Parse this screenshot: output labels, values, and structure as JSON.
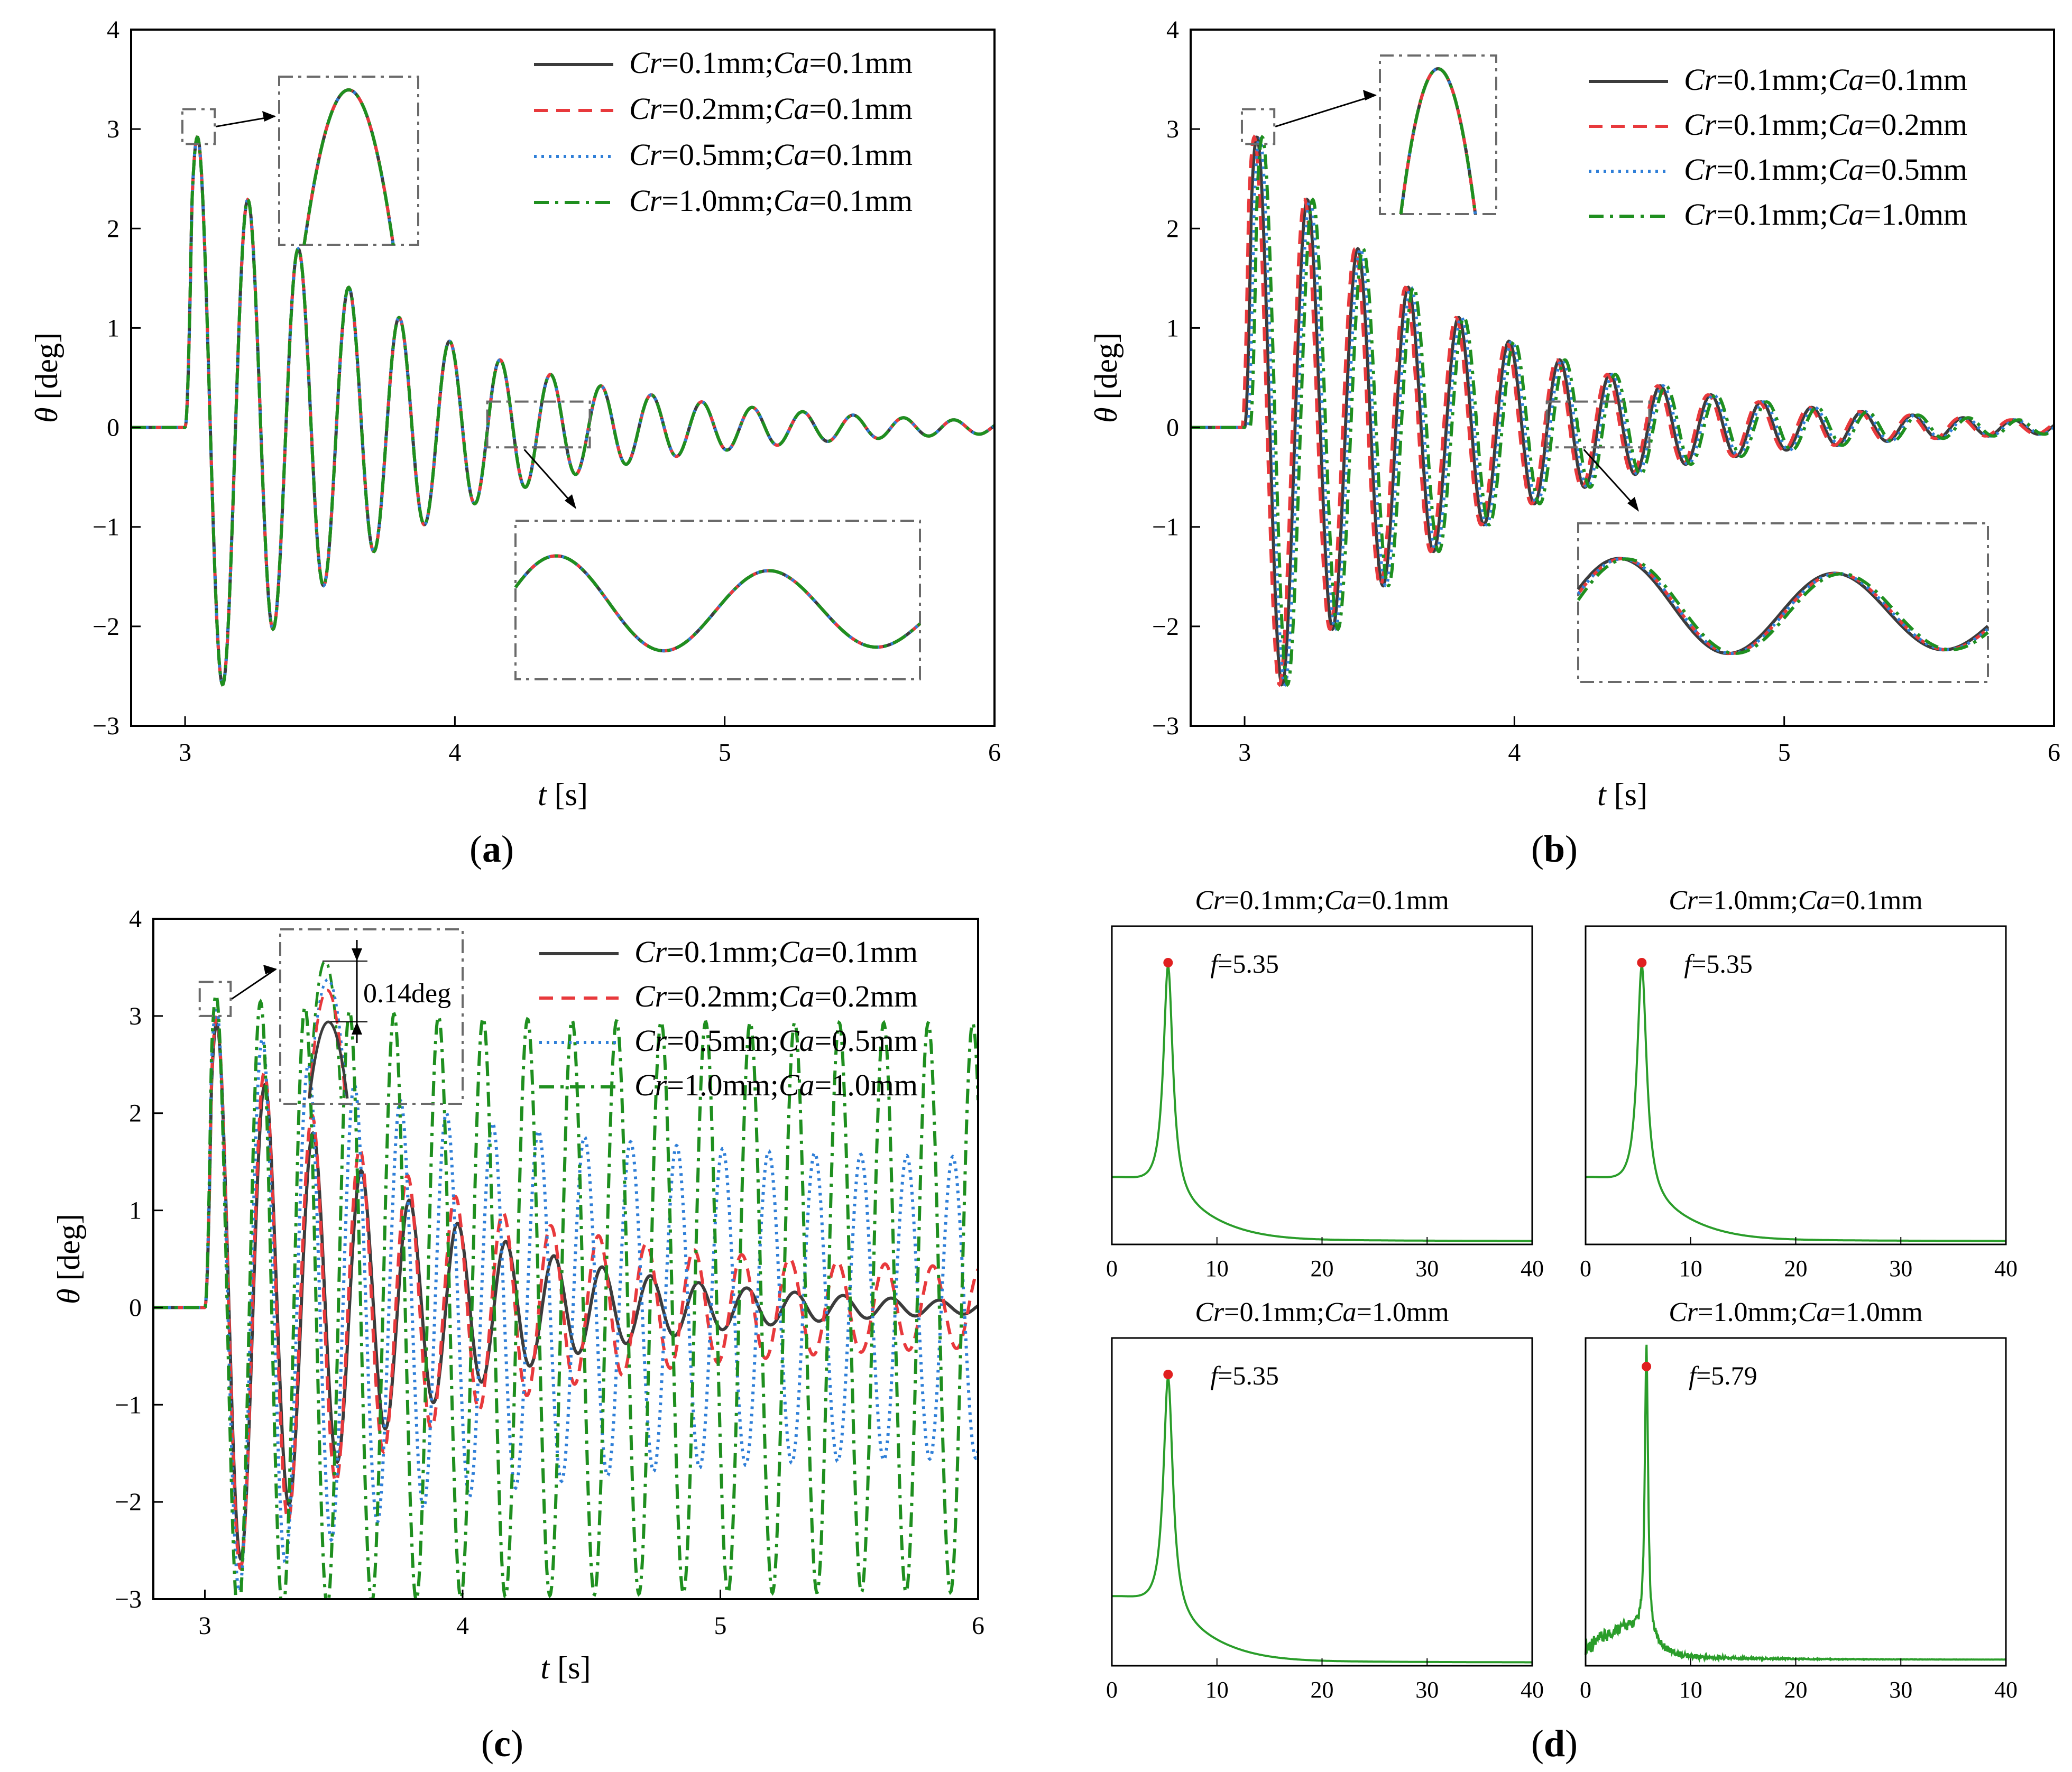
{
  "figure": {
    "panels": [
      "(a)",
      "(b)",
      "(c)",
      "(d)"
    ]
  },
  "colors": {
    "solid": "#3c3c3c",
    "dashed": "#e8393c",
    "dotted": "#2f7fd8",
    "dashdot": "#1f8f1f",
    "box": "#6a6a6a",
    "peak": "#e02020",
    "spectrum": "#2a9d2a"
  },
  "chart_data": [
    {
      "id": "a",
      "type": "line",
      "label": "(a)",
      "xlabel_var": "t",
      "xlabel_unit": " [s]",
      "ylabel_var": "θ",
      "ylabel_unit": " [deg]",
      "xlim": [
        2.8,
        6.0
      ],
      "ylim": [
        -3,
        4
      ],
      "xticks": [
        3,
        4,
        5,
        6
      ],
      "yticks": [
        -3,
        -2,
        -1,
        0,
        1,
        2,
        3,
        4
      ],
      "ytick_labels": [
        "−3",
        "−2",
        "−1",
        "0",
        "1",
        "2",
        "3",
        "4"
      ],
      "signal": {
        "t0": 3.0,
        "A0": 3.1,
        "f": 5.35,
        "decay": 1.3,
        "phase_shift": [
          0,
          0,
          0,
          0
        ],
        "persist": [
          0,
          0,
          0,
          0
        ]
      },
      "series": [
        {
          "style": "solid",
          "legend": [
            [
              "Cr",
              true
            ],
            [
              "=0.1mm;",
              false
            ],
            [
              "Ca",
              true
            ],
            [
              "=0.1mm",
              false
            ]
          ]
        },
        {
          "style": "dashed",
          "legend": [
            [
              "Cr",
              true
            ],
            [
              "=0.2mm;",
              false
            ],
            [
              "Ca",
              true
            ],
            [
              "=0.1mm",
              false
            ]
          ]
        },
        {
          "style": "dotted",
          "legend": [
            [
              "Cr",
              true
            ],
            [
              "=0.5mm;",
              false
            ],
            [
              "Ca",
              true
            ],
            [
              "=0.1mm",
              false
            ]
          ]
        },
        {
          "style": "dashdot",
          "legend": [
            [
              "Cr",
              true
            ],
            [
              "=1.0mm;",
              false
            ],
            [
              "Ca",
              true
            ],
            [
              "=0.1mm",
              false
            ]
          ]
        }
      ]
    },
    {
      "id": "b",
      "type": "line",
      "label": "(b)",
      "xlabel_var": "t",
      "xlabel_unit": " [s]",
      "ylabel_var": "θ",
      "ylabel_unit": " [deg]",
      "xlim": [
        2.8,
        6.0
      ],
      "ylim": [
        -3,
        4
      ],
      "xticks": [
        3,
        4,
        5,
        6
      ],
      "yticks": [
        -3,
        -2,
        -1,
        0,
        1,
        2,
        3,
        4
      ],
      "ytick_labels": [
        "−3",
        "−2",
        "−1",
        "0",
        "1",
        "2",
        "3",
        "4"
      ],
      "signal": {
        "t0": 3.0,
        "A0": 3.1,
        "f": 5.35,
        "decay": 1.3,
        "phase_shift": [
          0,
          -0.01,
          0.01,
          0.02
        ],
        "persist": [
          0,
          0,
          0,
          0
        ]
      },
      "series": [
        {
          "style": "solid",
          "legend": [
            [
              "Cr",
              true
            ],
            [
              "=0.1mm;",
              false
            ],
            [
              "Ca",
              true
            ],
            [
              "=0.1mm",
              false
            ]
          ]
        },
        {
          "style": "dashed",
          "legend": [
            [
              "Cr",
              true
            ],
            [
              "=0.1mm;",
              false
            ],
            [
              "Ca",
              true
            ],
            [
              "=0.2mm",
              false
            ]
          ]
        },
        {
          "style": "dotted",
          "legend": [
            [
              "Cr",
              true
            ],
            [
              "=0.1mm;",
              false
            ],
            [
              "Ca",
              true
            ],
            [
              "=0.5mm",
              false
            ]
          ]
        },
        {
          "style": "dashdot",
          "legend": [
            [
              "Cr",
              true
            ],
            [
              "=0.1mm;",
              false
            ],
            [
              "Ca",
              true
            ],
            [
              "=1.0mm",
              false
            ]
          ]
        }
      ]
    },
    {
      "id": "c",
      "type": "line",
      "label": "(c)",
      "xlabel_var": "t",
      "xlabel_unit": " [s]",
      "ylabel_var": "θ",
      "ylabel_unit": " [deg]",
      "xlim": [
        2.8,
        6.0
      ],
      "ylim": [
        -3,
        4
      ],
      "xticks": [
        3,
        4,
        5,
        6
      ],
      "yticks": [
        -3,
        -2,
        -1,
        0,
        1,
        2,
        3,
        4
      ],
      "ytick_labels": [
        "−3",
        "−2",
        "−1",
        "0",
        "1",
        "2",
        "3",
        "4"
      ],
      "annotation": "0.14deg",
      "signal": {
        "t0": 3.0,
        "A0": 3.1,
        "f": 5.35,
        "decay": 1.3,
        "phase_shift": [
          0,
          0,
          0,
          0
        ],
        "persist": [
          0,
          0.12,
          0.5,
          0.95
        ],
        "freq": [
          5.35,
          5.4,
          5.6,
          5.79
        ]
      },
      "series": [
        {
          "style": "solid",
          "legend": [
            [
              "Cr",
              true
            ],
            [
              "=0.1mm;",
              false
            ],
            [
              "Ca",
              true
            ],
            [
              "=0.1mm",
              false
            ]
          ]
        },
        {
          "style": "dashed",
          "legend": [
            [
              "Cr",
              true
            ],
            [
              "=0.2mm;",
              false
            ],
            [
              "Ca",
              true
            ],
            [
              "=0.2mm",
              false
            ]
          ]
        },
        {
          "style": "dotted",
          "legend": [
            [
              "Cr",
              true
            ],
            [
              "=0.5mm;",
              false
            ],
            [
              "Ca",
              true
            ],
            [
              "=0.5mm",
              false
            ]
          ]
        },
        {
          "style": "dashdot",
          "legend": [
            [
              "Cr",
              true
            ],
            [
              "=1.0mm;",
              false
            ],
            [
              "Ca",
              true
            ],
            [
              "=1.0mm",
              false
            ]
          ]
        }
      ]
    },
    {
      "id": "d",
      "type": "line",
      "label": "(d)",
      "xlim": [
        0,
        40
      ],
      "xticks": [
        0,
        10,
        20,
        30,
        40
      ],
      "spectra": [
        {
          "title": [
            [
              "Cr",
              true
            ],
            [
              "=0.1mm;",
              false
            ],
            [
              "Ca",
              true
            ],
            [
              "=0.1mm",
              false
            ]
          ],
          "peak_var": "f",
          "peak_text": "=5.35",
          "peak_f": 5.35,
          "noisy": false
        },
        {
          "title": [
            [
              "Cr",
              true
            ],
            [
              "=1.0mm;",
              false
            ],
            [
              "Ca",
              true
            ],
            [
              "=0.1mm",
              false
            ]
          ],
          "peak_var": "f",
          "peak_text": "=5.35",
          "peak_f": 5.35,
          "noisy": false
        },
        {
          "title": [
            [
              "Cr",
              true
            ],
            [
              "=0.1mm;",
              false
            ],
            [
              "Ca",
              true
            ],
            [
              "=1.0mm",
              false
            ]
          ],
          "peak_var": "f",
          "peak_text": "=5.35",
          "peak_f": 5.35,
          "noisy": false
        },
        {
          "title": [
            [
              "Cr",
              true
            ],
            [
              "=1.0mm;",
              false
            ],
            [
              "Ca",
              true
            ],
            [
              "=1.0mm",
              false
            ]
          ],
          "peak_var": "f",
          "peak_text": "=5.79",
          "peak_f": 5.79,
          "noisy": true
        }
      ]
    }
  ]
}
